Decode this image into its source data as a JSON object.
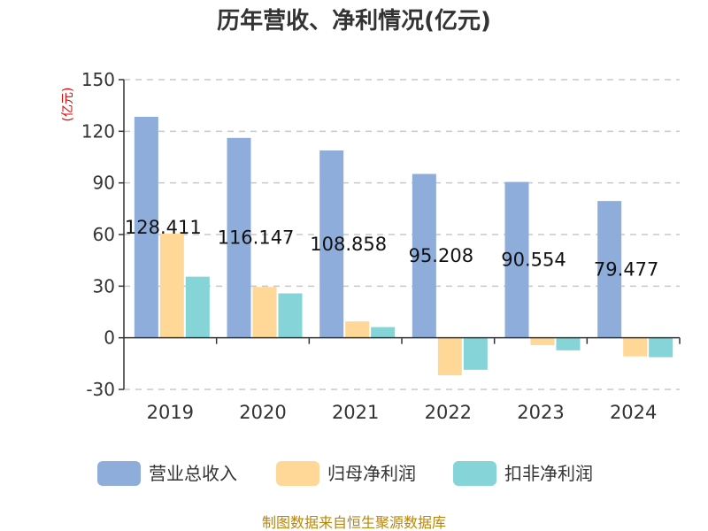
{
  "chart_data": {
    "type": "bar",
    "title": "历年营收、净利情况(亿元)",
    "xlabel": "",
    "ylabel": "(亿元)",
    "categories": [
      "2019",
      "2020",
      "2021",
      "2022",
      "2023",
      "2024"
    ],
    "ylim": [
      -30,
      150
    ],
    "yticks": [
      -30,
      0,
      30,
      60,
      90,
      120,
      150
    ],
    "grid": true,
    "legend": "bottom",
    "series": [
      {
        "name": "营业总收入",
        "color": "#8eaddb",
        "values": [
          128.411,
          116.147,
          108.858,
          95.208,
          90.554,
          79.477
        ],
        "labels": [
          "128.411",
          "116.147",
          "108.858",
          "95.208",
          "90.554",
          "79.477"
        ]
      },
      {
        "name": "归母净利润",
        "color": "#ffd797",
        "values": [
          60.5,
          29.5,
          9.5,
          -21.8,
          -4.3,
          -10.8
        ]
      },
      {
        "name": "扣非净利润",
        "color": "#85d5d8",
        "values": [
          35.5,
          25.8,
          6.2,
          -18.6,
          -7.3,
          -11.3
        ]
      }
    ]
  },
  "source": "制图数据来自恒生聚源数据库"
}
